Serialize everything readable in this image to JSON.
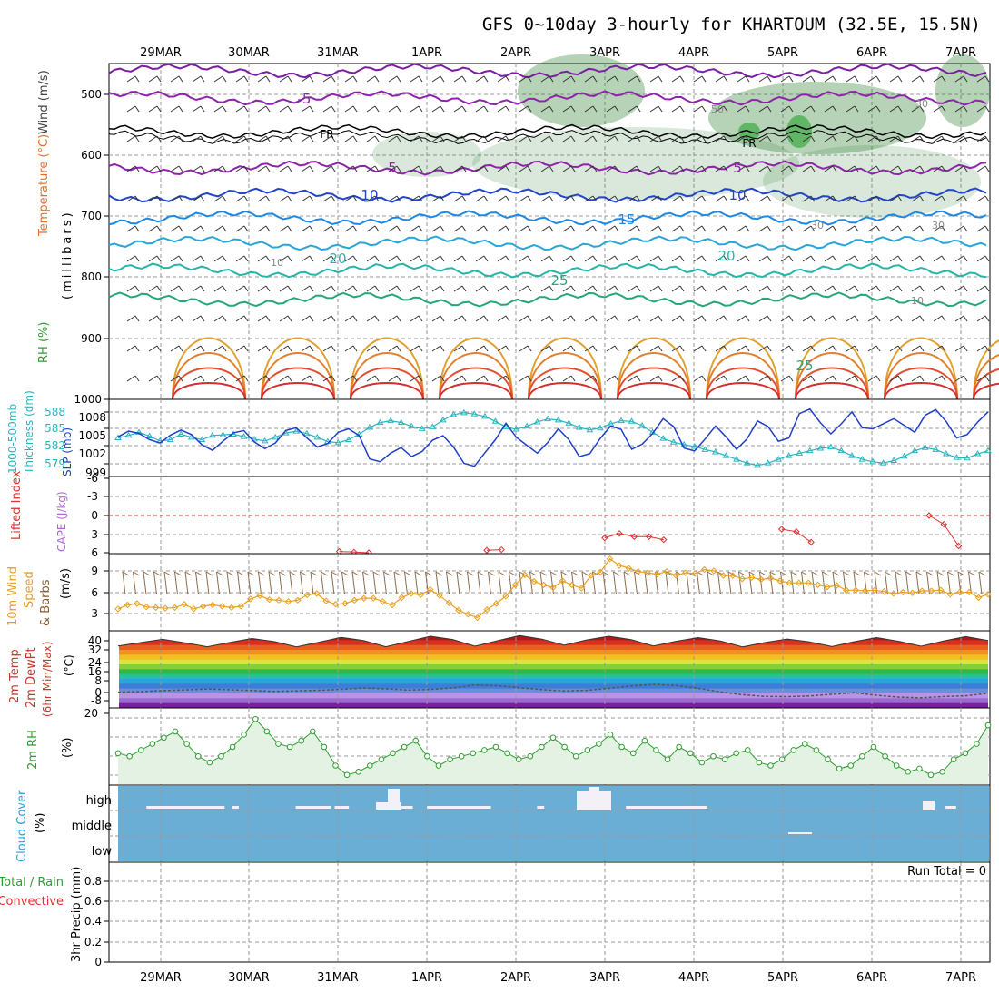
{
  "title": "GFS 0~10day 3-hourly for KHARTOUM (32.5E, 15.5N)",
  "date_labels": [
    "29MAR",
    "30MAR",
    "31MAR",
    "1APR",
    "2APR",
    "3APR",
    "4APR",
    "5APR",
    "6APR",
    "7APR"
  ],
  "colors": {
    "grid": "#999999",
    "rh_green": "#2e9e2e",
    "temp_red": "#e03030",
    "cape_purple": "#b066d8",
    "thick_cyan": "#2ab4c0",
    "slp_blue": "#1f3fc8",
    "wind_orange": "#e8a020",
    "cloud_blue": "#6aaed6",
    "precip_green": "#2e9e2e",
    "precip_red": "#e03030"
  },
  "panels": {
    "upper": {
      "ylabel_wind": "Wind (m/s)",
      "ylabel_temp": "Temperature (°C)",
      "ylabel_rh": "RH (%)",
      "ylabel_mb": "(millibars)",
      "ticks": [
        "500",
        "600",
        "700",
        "800",
        "900",
        "1000"
      ],
      "contour_labels": {
        "minus5": "-5",
        "fr": "FR",
        "five": "5",
        "ten": "10",
        "fifteen": "15",
        "twenty": "20",
        "twentyfive": "25",
        "thirty": "30",
        "fifty": "50",
        "rh10": "10"
      }
    },
    "thickness": {
      "ylabel_left1": "1000-500mb",
      "ylabel_left2": "Thickness (dm)",
      "ylabel_right": "SLP (mb)",
      "ticks_left": [
        "588",
        "585",
        "582",
        "579"
      ],
      "ticks_right": [
        "1008",
        "1005",
        "1002",
        "999"
      ]
    },
    "stability": {
      "ylabel_li": "Lifted Index",
      "ylabel_cape": "CAPE (J/kg)",
      "ticks": [
        "-6",
        "-3",
        "0",
        "3",
        "6"
      ]
    },
    "wind10m": {
      "ylabel_1": "10m Wind",
      "ylabel_2": "Speed",
      "ylabel_3": "& Barbs",
      "ylabel_units": "(m/s)",
      "ticks": [
        "9",
        "6",
        "3"
      ]
    },
    "temp2m": {
      "ylabel_1": "2m Temp",
      "ylabel_2": "2m DewPt",
      "ylabel_3": "(6hr Min/Max)",
      "ylabel_units": "(°C)",
      "ticks": [
        "40",
        "32",
        "24",
        "16",
        "8",
        "0",
        "-8"
      ]
    },
    "rh2m": {
      "ylabel": "2m RH",
      "ylabel_units": "(%)",
      "ticks": [
        "20"
      ]
    },
    "cloud": {
      "ylabel": "Cloud Cover",
      "ylabel_units": "(%)",
      "levels": [
        "high",
        "middle",
        "low"
      ]
    },
    "precip": {
      "ylabel_1": "Total / Rain",
      "ylabel_2": "Convective",
      "ylabel_3": "3hr Precip (mm)",
      "run_total": "Run Total = 0",
      "ticks": [
        "0.8",
        "0.6",
        "0.4",
        "0.2",
        "0"
      ]
    }
  },
  "chart_data": [
    {
      "type": "line",
      "name": "1000-500mb Thickness (dm)",
      "x_labels": [
        "29MAR",
        "30MAR",
        "31MAR",
        "1APR",
        "2APR",
        "3APR",
        "4APR",
        "5APR",
        "6APR",
        "7APR"
      ],
      "values": [
        583.5,
        583.9,
        584.4,
        583.8,
        583.0,
        583.2,
        584.1,
        583.6,
        583.2,
        583.9,
        584.0,
        584.1,
        583.7,
        583.3,
        583.0,
        583.6,
        584.3,
        584.6,
        584.2,
        583.6,
        582.9,
        582.7,
        583.2,
        584.1,
        585.2,
        586.0,
        586.3,
        586.0,
        585.4,
        585.0,
        585.3,
        586.4,
        587.3,
        587.6,
        587.4,
        587.0,
        586.2,
        585.3,
        584.9,
        585.4,
        586.1,
        586.6,
        586.4,
        585.9,
        585.2,
        584.8,
        585.1,
        585.8,
        586.3,
        586.2,
        585.5,
        584.4,
        583.4,
        582.8,
        582.4,
        582.1,
        581.6,
        581.2,
        580.6,
        580.0,
        579.4,
        579.0,
        579.4,
        580.0,
        580.6,
        581.0,
        581.4,
        581.8,
        582.0,
        581.4,
        580.6,
        580.0,
        579.6,
        579.4,
        579.8,
        580.5,
        581.4,
        581.9,
        581.6,
        580.9,
        580.3,
        580.2,
        580.9,
        581.4
      ],
      "ylim": [
        577.5,
        589.5
      ]
    },
    {
      "type": "line",
      "name": "SLP (mb)",
      "values": [
        1004.2,
        1005.2,
        1004.8,
        1003.7,
        1003.1,
        1004.5,
        1005.4,
        1004.6,
        1002.8,
        1001.8,
        1003.4,
        1004.9,
        1005.3,
        1003.3,
        1002.1,
        1003.1,
        1005.3,
        1005.8,
        1004.0,
        1002.4,
        1003.0,
        1005.0,
        1005.6,
        1004.4,
        1000.3,
        999.8,
        1001.3,
        1002.3,
        1000.7,
        1001.6,
        1003.6,
        1004.4,
        1002.4,
        999.5,
        999.0,
        1001.4,
        1003.7,
        1006.6,
        1004.1,
        1002.7,
        1001.3,
        1003.2,
        1005.6,
        1003.7,
        1000.7,
        1001.2,
        1003.9,
        1006.1,
        1005.5,
        1002.0,
        1002.9,
        1004.8,
        1007.4,
        1006.0,
        1002.2,
        1001.7,
        1003.8,
        1006.1,
        1004.2,
        1002.0,
        1003.8,
        1007.0,
        1006.0,
        1003.4,
        1004.0,
        1008.3,
        1009.1,
        1006.7,
        1004.7,
        1006.5,
        1008.6,
        1005.8,
        1005.6,
        1006.5,
        1007.4,
        1006.2,
        1005.0,
        1008.0,
        1009.0,
        1006.9,
        1004.0,
        1004.6,
        1006.8,
        1008.6
      ],
      "ylim": [
        997.5,
        1010.5
      ]
    },
    {
      "type": "line",
      "name": "Lifted Index",
      "values": [
        null,
        null,
        null,
        null,
        null,
        null,
        null,
        null,
        null,
        null,
        null,
        null,
        null,
        null,
        null,
        5.8,
        5.9,
        6.0,
        null,
        null,
        null,
        null,
        null,
        null,
        null,
        5.6,
        5.5,
        null,
        null,
        null,
        null,
        null,
        null,
        3.6,
        2.9,
        3.4,
        3.4,
        3.9,
        null,
        null,
        null,
        null,
        null,
        null,
        null,
        2.2,
        2.6,
        4.3,
        null,
        null,
        null,
        null,
        null,
        null,
        null,
        0.0,
        1.4,
        4.9,
        null,
        null
      ],
      "ylim": [
        -6,
        6
      ]
    },
    {
      "type": "line",
      "name": "10m Wind Speed (m/s)",
      "values": [
        3.0,
        3.6,
        3.8,
        3.3,
        3.2,
        3.1,
        3.2,
        3.7,
        3.0,
        3.4,
        3.6,
        3.4,
        3.2,
        3.4,
        4.5,
        5.0,
        4.4,
        4.3,
        4.1,
        4.3,
        5.1,
        5.3,
        4.2,
        3.7,
        3.8,
        4.3,
        4.6,
        4.6,
        4.1,
        3.6,
        4.7,
        5.3,
        5.1,
        5.9,
        5.0,
        3.9,
        2.8,
        2.2,
        1.7,
        2.9,
        3.8,
        4.9,
        6.6,
        8.1,
        7.1,
        6.6,
        6.2,
        7.2,
        6.6,
        6.1,
        8.0,
        8.5,
        10.5,
        9.5,
        9.1,
        8.6,
        8.4,
        8.2,
        8.6,
        8.0,
        8.4,
        8.3,
        8.9,
        8.7,
        8.0,
        8.0,
        7.5,
        7.7,
        7.4,
        7.6,
        7.2,
        6.9,
        6.9,
        6.9,
        6.6,
        6.3,
        6.5,
        5.8,
        5.8,
        5.7,
        5.8,
        5.6,
        5.3,
        5.5,
        5.4,
        5.7,
        5.7,
        5.8,
        5.2,
        5.5,
        5.5,
        4.7,
        5.2
      ],
      "ylim": [
        0,
        11
      ]
    },
    {
      "type": "area",
      "name": "2m Temp (6hr Min/Max)",
      "values": [
        33.5,
        36.2,
        38.8,
        36.1,
        33.0,
        36.3,
        39.4,
        37.0,
        32.9,
        36.5,
        40.3,
        37.8,
        33.0,
        37.1,
        41.2,
        38.6,
        33.4,
        37.6,
        41.7,
        38.9,
        34.2,
        38.3,
        41.2,
        38.5,
        33.6,
        37.2,
        40.1,
        37.4,
        32.8,
        36.3,
        39.0,
        36.8,
        33.1,
        36.9,
        40.1,
        37.2,
        33.4,
        37.4,
        40.9,
        37.8
      ],
      "ylim": [
        -14,
        44
      ]
    },
    {
      "type": "line",
      "name": "2m DewPt",
      "values": [
        -2.4,
        -2.0,
        -1.2,
        -0.6,
        0.0,
        -0.5,
        -1.1,
        -1.8,
        -1.4,
        -0.9,
        -0.2,
        0.8,
        0.2,
        -0.8,
        -0.3,
        0.9,
        3.2,
        2.6,
        1.0,
        -0.4,
        -1.5,
        -1.0,
        0.5,
        2.4,
        3.6,
        2.8,
        0.6,
        -2.2,
        -4.4,
        -5.7,
        -5.9,
        -5.4,
        -4.0,
        -2.9,
        -4.8,
        -6.3,
        -6.8,
        -5.8,
        -5.2,
        -3.3
      ],
      "ylim": [
        -14,
        44
      ]
    },
    {
      "type": "line",
      "name": "2m RH (%)",
      "values": [
        10,
        9,
        11,
        13,
        15,
        17,
        13,
        9,
        7,
        9,
        12,
        16,
        21,
        17,
        13,
        12,
        14,
        17,
        12,
        6,
        3,
        4,
        6,
        8,
        10,
        12,
        14,
        9,
        6,
        8,
        9,
        10,
        11,
        12,
        10,
        8,
        9,
        12,
        15,
        12,
        9,
        11,
        13,
        16,
        12,
        10,
        14,
        11,
        8,
        12,
        10,
        7,
        9,
        8,
        10,
        11,
        7,
        6,
        8,
        11,
        13,
        11,
        8,
        5,
        6,
        9,
        12,
        9,
        6,
        4,
        5,
        3,
        4,
        8,
        10,
        13,
        19
      ],
      "ylim": [
        0,
        24
      ]
    },
    {
      "type": "bar",
      "name": "Cloud Cover high (%)",
      "segments": [
        [
          0.8,
          3.0
        ],
        [
          3.2,
          3.4
        ],
        [
          5.0,
          6.0
        ],
        [
          6.1,
          6.5
        ],
        [
          7.4,
          8.0
        ],
        [
          8.0,
          8.3
        ],
        [
          8.7,
          10.5
        ],
        [
          11.8,
          12.0
        ],
        [
          14.3,
          16.6
        ],
        [
          23.3,
          23.6
        ]
      ]
    },
    {
      "type": "bar",
      "name": "3hr Precip (mm)",
      "values": [],
      "ylim": [
        0,
        1
      ]
    }
  ]
}
